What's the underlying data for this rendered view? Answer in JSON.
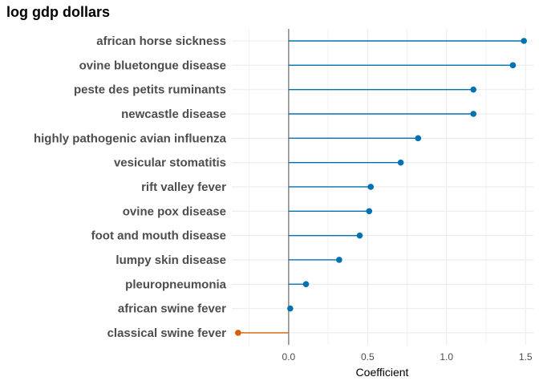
{
  "chart_data": {
    "type": "lollipop",
    "title": "log gdp dollars",
    "xlabel": "Coefficient",
    "ylabel": "",
    "xlim": [
      -0.36,
      1.55
    ],
    "x_ticks": [
      0.0,
      0.5,
      1.0,
      1.5
    ],
    "x_tick_labels": [
      "0.0",
      "0.5",
      "1.0",
      "1.5"
    ],
    "grid": true,
    "reference_line_x": 0,
    "colors": {
      "positive": "#0072B2",
      "negative": "#D55E00",
      "reference": "#7f7f7f",
      "grid": "#ebebeb"
    },
    "categories": [
      "african horse sickness",
      "ovine bluetongue disease",
      "peste des petits ruminants",
      "newcastle disease",
      "highly pathogenic avian influenza",
      "vesicular stomatitis",
      "rift valley fever",
      "ovine pox disease",
      "foot and mouth disease",
      "lumpy skin disease",
      "pleuropneumonia",
      "african swine fever",
      "classical swine fever"
    ],
    "values": [
      1.49,
      1.42,
      1.17,
      1.17,
      0.82,
      0.71,
      0.52,
      0.51,
      0.45,
      0.32,
      0.11,
      0.01,
      -0.32
    ]
  }
}
